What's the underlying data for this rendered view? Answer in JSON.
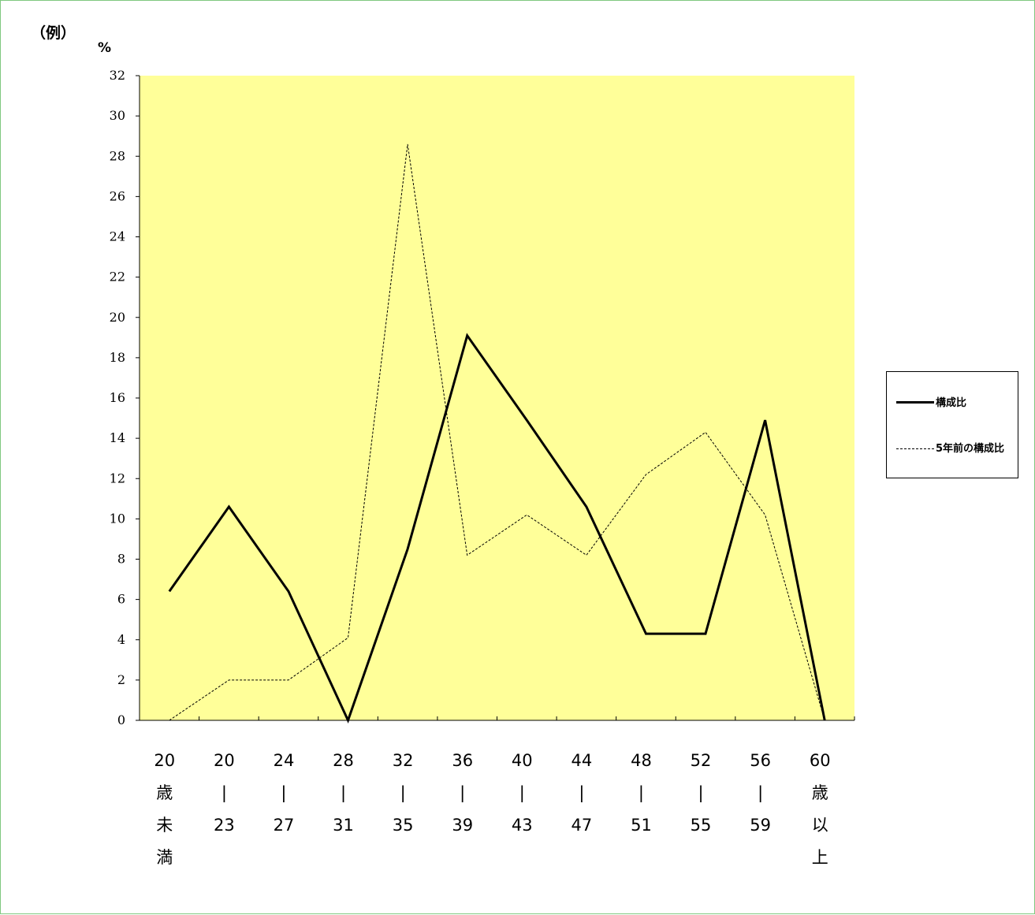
{
  "header": {
    "example": "（例）",
    "unit": "%"
  },
  "colors": {
    "plot_bg": "#ffff99",
    "line": "#000000",
    "frame": "#7fc87f"
  },
  "chart_data": {
    "type": "line",
    "categories": [
      [
        "20",
        "歳",
        "未",
        "満"
      ],
      [
        "20",
        "|",
        "23"
      ],
      [
        "24",
        "|",
        "27"
      ],
      [
        "28",
        "|",
        "31"
      ],
      [
        "32",
        "|",
        "35"
      ],
      [
        "36",
        "|",
        "39"
      ],
      [
        "40",
        "|",
        "43"
      ],
      [
        "44",
        "|",
        "47"
      ],
      [
        "48",
        "|",
        "51"
      ],
      [
        "52",
        "|",
        "55"
      ],
      [
        "56",
        "|",
        "59"
      ],
      [
        "60",
        "歳",
        "以",
        "上"
      ]
    ],
    "series": [
      {
        "name": "構成比",
        "style": "solid",
        "values": [
          6.4,
          10.6,
          6.4,
          0,
          8.5,
          19.1,
          14.9,
          10.6,
          4.3,
          4.3,
          14.9,
          0
        ]
      },
      {
        "name": "5年前の構成比",
        "style": "dashed",
        "values": [
          0,
          2.0,
          2.0,
          4.1,
          28.6,
          8.2,
          10.2,
          8.2,
          12.2,
          14.3,
          10.2,
          0
        ]
      }
    ],
    "ylim": [
      0,
      32
    ],
    "yticks": [
      "0",
      "2",
      "4",
      "6",
      "8",
      "10",
      "12",
      "14",
      "16",
      "18",
      "20",
      "22",
      "24",
      "26",
      "28",
      "30",
      "32"
    ],
    "legend": {
      "position": "right"
    },
    "grid": false
  }
}
